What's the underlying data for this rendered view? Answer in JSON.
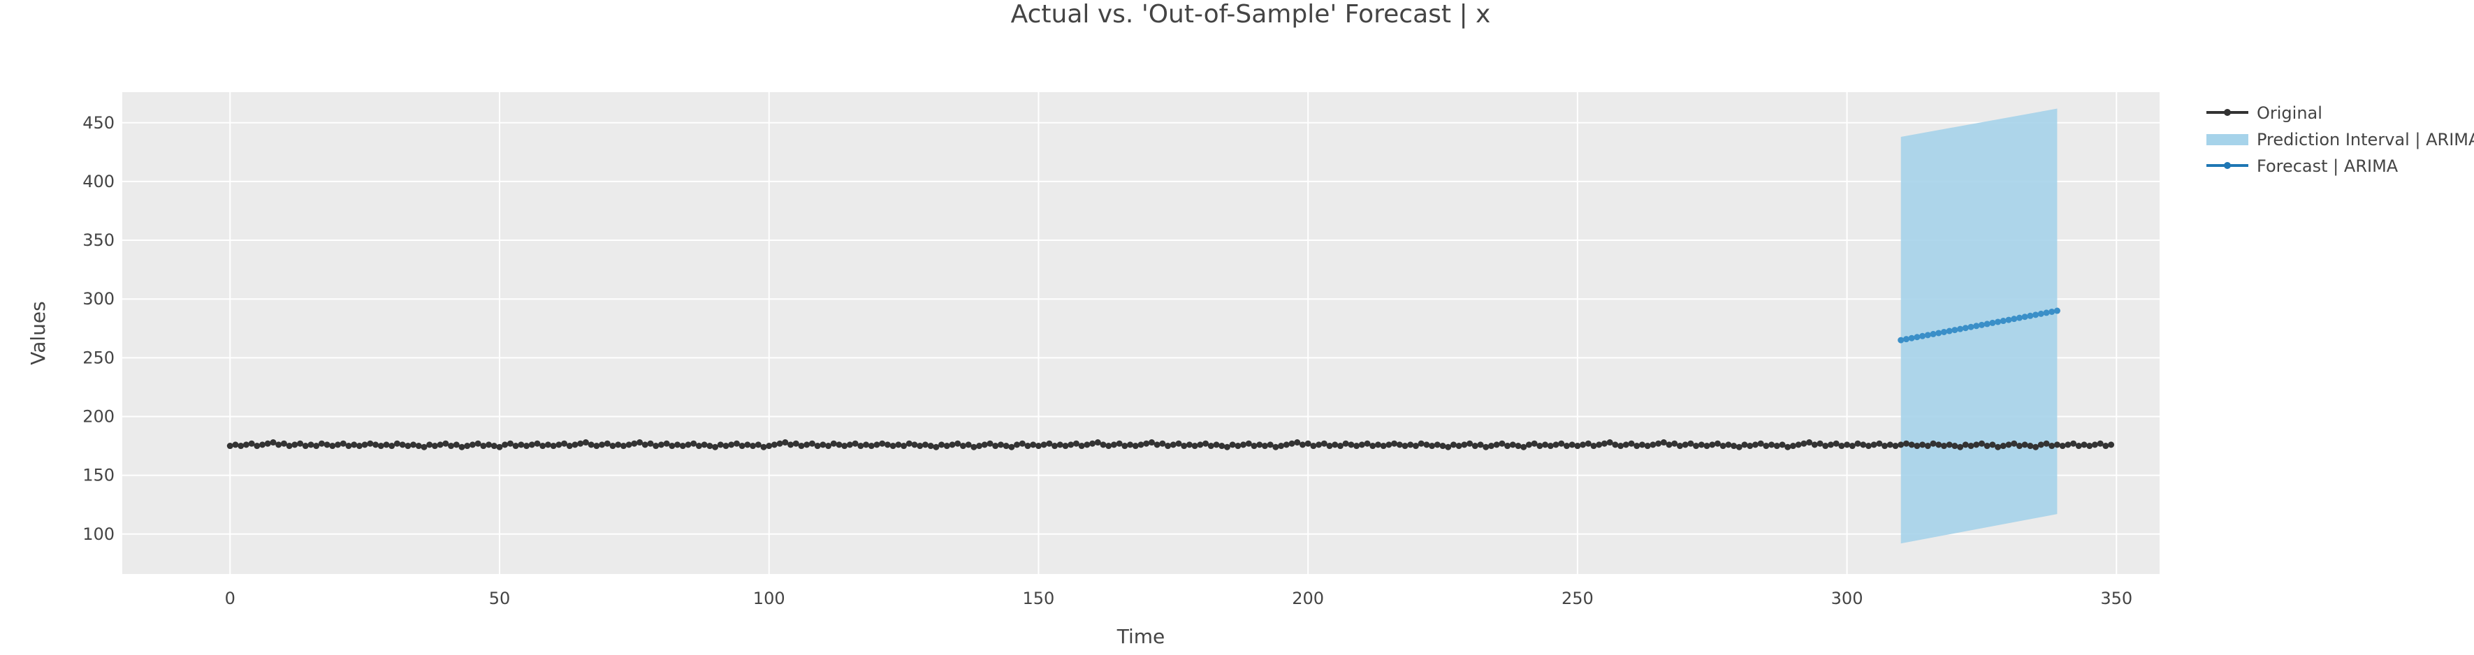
{
  "chart_data": {
    "type": "line",
    "title": "Actual vs. 'Out-of-Sample' Forecast | x",
    "xlabel": "Time",
    "ylabel": "Values",
    "xlim": [
      -20,
      358
    ],
    "ylim": [
      66,
      476
    ],
    "x_ticks": [
      0,
      50,
      100,
      150,
      200,
      250,
      300,
      350
    ],
    "y_ticks": [
      100,
      150,
      200,
      250,
      300,
      350,
      400,
      450
    ],
    "grid": true,
    "legend_position": "right",
    "colors": {
      "plot_background": "#ebebeb",
      "grid": "#ffffff",
      "original": "#333333",
      "forecast": "#3a8fc8",
      "interval": "#a6d3ea"
    },
    "series": [
      {
        "name": "Original",
        "kind": "line+markers",
        "x_start": 0,
        "x_step": 1,
        "values": [
          175,
          176,
          175,
          176,
          177,
          175,
          176,
          177,
          178,
          176,
          177,
          175,
          176,
          177,
          175,
          176,
          175,
          177,
          176,
          175,
          176,
          177,
          175,
          176,
          175,
          176,
          177,
          176,
          175,
          176,
          175,
          177,
          176,
          175,
          176,
          175,
          174,
          176,
          175,
          176,
          177,
          175,
          176,
          174,
          175,
          176,
          177,
          175,
          176,
          175,
          174,
          176,
          177,
          175,
          176,
          175,
          176,
          177,
          175,
          176,
          175,
          176,
          177,
          175,
          176,
          177,
          178,
          176,
          175,
          176,
          177,
          175,
          176,
          175,
          176,
          177,
          178,
          176,
          177,
          175,
          176,
          177,
          175,
          176,
          175,
          176,
          177,
          175,
          176,
          175,
          174,
          176,
          175,
          176,
          177,
          175,
          176,
          175,
          176,
          174,
          175,
          176,
          177,
          178,
          176,
          177,
          175,
          176,
          177,
          175,
          176,
          175,
          177,
          176,
          175,
          176,
          177,
          175,
          176,
          175,
          176,
          177,
          176,
          175,
          176,
          175,
          177,
          176,
          175,
          176,
          175,
          174,
          176,
          175,
          176,
          177,
          175,
          176,
          174,
          175,
          176,
          177,
          175,
          176,
          175,
          174,
          176,
          177,
          175,
          176,
          175,
          176,
          177,
          175,
          176,
          175,
          176,
          177,
          175,
          176,
          177,
          178,
          176,
          175,
          176,
          177,
          175,
          176,
          175,
          176,
          177,
          178,
          176,
          177,
          175,
          176,
          177,
          175,
          176,
          175,
          176,
          177,
          175,
          176,
          175,
          174,
          176,
          175,
          176,
          177,
          175,
          176,
          175,
          176,
          174,
          175,
          176,
          177,
          178,
          176,
          177,
          175,
          176,
          177,
          175,
          176,
          175,
          177,
          176,
          175,
          176,
          177,
          175,
          176,
          175,
          176,
          177,
          176,
          175,
          176,
          175,
          177,
          176,
          175,
          176,
          175,
          174,
          176,
          175,
          176,
          177,
          175,
          176,
          174,
          175,
          176,
          177,
          175,
          176,
          175,
          174,
          176,
          177,
          175,
          176,
          175,
          176,
          177,
          175,
          176,
          175,
          176,
          177,
          175,
          176,
          177,
          178,
          176,
          175,
          176,
          177,
          175,
          176,
          175,
          176,
          177,
          178,
          176,
          177,
          175,
          176,
          177,
          175,
          176,
          175,
          176,
          177,
          175,
          176,
          175,
          174,
          176,
          175,
          176,
          177,
          175,
          176,
          175,
          176,
          174,
          175,
          176,
          177,
          178,
          176,
          177,
          175,
          176,
          177,
          175,
          176,
          175,
          177,
          176,
          175,
          176,
          177,
          175,
          176,
          175,
          176,
          177,
          176,
          175,
          176,
          175,
          177,
          176,
          175,
          176,
          175,
          174,
          176,
          175,
          176,
          177,
          175,
          176,
          174,
          175,
          176,
          177,
          175,
          176,
          175,
          174,
          176,
          177,
          175,
          176,
          175,
          176,
          177,
          175,
          176,
          175,
          176,
          177,
          175,
          176
        ]
      },
      {
        "name": "Prediction Interval | ARIMA",
        "kind": "band",
        "x": [
          310,
          339
        ],
        "lower": [
          92,
          117
        ],
        "upper": [
          438,
          462
        ]
      },
      {
        "name": "Forecast | ARIMA",
        "kind": "line+markers",
        "x_start": 310,
        "x_end": 339,
        "y_start": 265,
        "y_end": 290
      }
    ],
    "legend": [
      "Original",
      "Prediction Interval | ARIMA",
      "Forecast | ARIMA"
    ]
  }
}
